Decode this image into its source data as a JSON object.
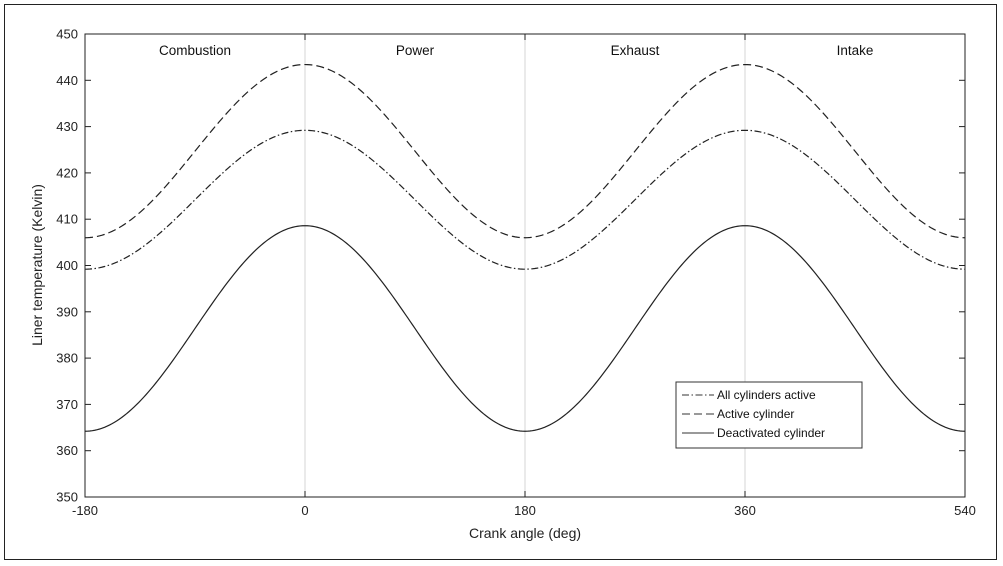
{
  "chart_data": {
    "type": "line",
    "xlabel": "Crank angle (deg)",
    "ylabel": "Liner temperature (Kelvin)",
    "xlim": [
      -180,
      540
    ],
    "ylim": [
      350,
      450
    ],
    "xticks": [
      "-180",
      "0",
      "180",
      "360",
      "540"
    ],
    "yticks": [
      "350",
      "360",
      "370",
      "380",
      "390",
      "400",
      "410",
      "420",
      "430",
      "440",
      "450"
    ],
    "phases": [
      "Combustion",
      "Power",
      "Exhaust",
      "Intake"
    ],
    "legend_position": "lower-right",
    "grid": "vertical lines at 0, 180, 360",
    "series": [
      {
        "name": "All cylinders active",
        "style": "dash-dot",
        "min": 399.2,
        "max": 429.2,
        "peaks_at": [
          0,
          360
        ],
        "troughs_at": [
          -180,
          180,
          540
        ]
      },
      {
        "name": "Active cylinder",
        "style": "dashed",
        "min": 406.0,
        "max": 443.4,
        "peaks_at": [
          0,
          360
        ],
        "troughs_at": [
          -180,
          180,
          540
        ]
      },
      {
        "name": "Deactivated cylinder",
        "style": "solid",
        "min": 364.2,
        "max": 408.6,
        "peaks_at": [
          0,
          360
        ],
        "troughs_at": [
          -180,
          180,
          540
        ]
      }
    ]
  }
}
